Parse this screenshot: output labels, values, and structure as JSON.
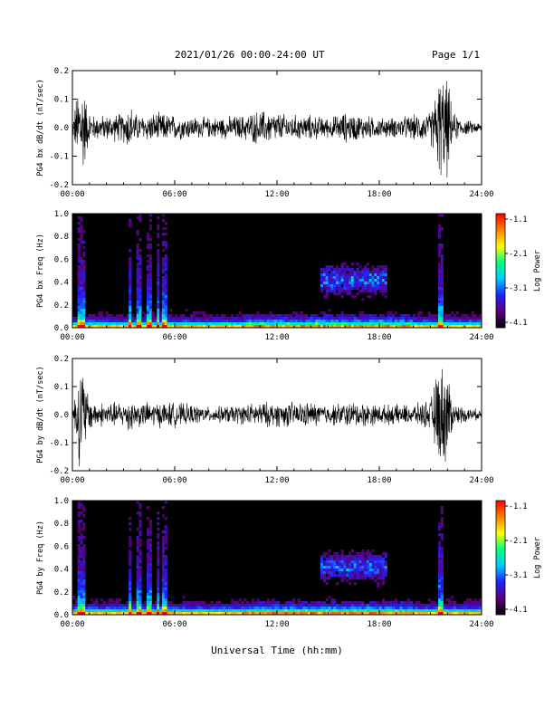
{
  "header": {
    "title": "2021/01/26  00:00-24:00 UT",
    "page": "Page 1/1"
  },
  "x_axis_label": "Universal Time (hh:mm)",
  "colorbar": {
    "label": "Log Power",
    "ticks": [
      "-1.1",
      "-2.1",
      "-3.1",
      "-4.1"
    ],
    "range": [
      -4.1,
      -1.1
    ],
    "colors": [
      "#000000",
      "#5a0078",
      "#2020ff",
      "#00c8ff",
      "#00ff80",
      "#ffff00",
      "#ff8000",
      "#ff0000"
    ]
  },
  "chart_data": [
    {
      "type": "line",
      "ylabel": "PG4 bx dB/dt (nT/sec)",
      "ylim": [
        -0.2,
        0.2
      ],
      "yticks": [
        "0.2",
        "0.1",
        "0.0",
        "-0.1",
        "-0.2"
      ],
      "xticks": [
        "00:00",
        "06:00",
        "12:00",
        "18:00",
        "24:00"
      ],
      "xlim_hours": [
        0,
        24
      ],
      "envelope": {
        "hours": [
          0,
          0.4,
          0.6,
          0.9,
          1.2,
          2,
          3,
          3.4,
          3.6,
          4,
          5,
          6,
          8,
          10,
          11,
          12,
          13,
          14,
          15,
          16,
          17,
          18,
          19,
          20,
          21,
          21.5,
          21.7,
          22,
          22.3,
          23,
          24
        ],
        "amplitude": [
          0.02,
          0.2,
          0.2,
          0.08,
          0.05,
          0.05,
          0.06,
          0.1,
          0.06,
          0.05,
          0.06,
          0.05,
          0.04,
          0.05,
          0.07,
          0.06,
          0.05,
          0.05,
          0.04,
          0.06,
          0.05,
          0.04,
          0.04,
          0.05,
          0.06,
          0.2,
          0.2,
          0.2,
          0.06,
          0.03,
          0.02
        ]
      },
      "color": "#000000"
    },
    {
      "type": "heatmap",
      "ylabel": "PG4 bx Freq (Hz)",
      "ylim": [
        0.0,
        1.0
      ],
      "yticks": [
        "1.0",
        "0.8",
        "0.6",
        "0.4",
        "0.2",
        "0.0"
      ],
      "xticks": [
        "00:00",
        "06:00",
        "12:00",
        "18:00",
        "24:00"
      ],
      "xlim_hours": [
        0,
        24
      ],
      "zlim": [
        -4.1,
        -1.1
      ],
      "enhanced_band": {
        "start_hour": 14.5,
        "end_hour": 18.5,
        "center_hz": 0.42,
        "width_hz": 0.12
      }
    },
    {
      "type": "line",
      "ylabel": "PG4 by dB/dt (nT/sec)",
      "ylim": [
        -0.2,
        0.2
      ],
      "yticks": [
        "0.2",
        "0.1",
        "0.0",
        "-0.1",
        "-0.2"
      ],
      "xticks": [
        "00:00",
        "06:00",
        "12:00",
        "18:00",
        "24:00"
      ],
      "xlim_hours": [
        0,
        24
      ],
      "envelope": {
        "hours": [
          0,
          0.4,
          0.6,
          0.9,
          1.2,
          2,
          3,
          3.4,
          3.6,
          4,
          5,
          6,
          8,
          10,
          11,
          12,
          13,
          14,
          15,
          16,
          17,
          18,
          19,
          20,
          21,
          21.5,
          21.7,
          22,
          22.3,
          23,
          24
        ],
        "amplitude": [
          0.02,
          0.2,
          0.2,
          0.09,
          0.05,
          0.05,
          0.05,
          0.08,
          0.05,
          0.05,
          0.05,
          0.05,
          0.03,
          0.04,
          0.05,
          0.05,
          0.05,
          0.05,
          0.04,
          0.05,
          0.05,
          0.04,
          0.04,
          0.04,
          0.06,
          0.2,
          0.2,
          0.2,
          0.05,
          0.03,
          0.02
        ]
      },
      "color": "#000000"
    },
    {
      "type": "heatmap",
      "ylabel": "PG4 by Freq (Hz)",
      "ylim": [
        0.0,
        1.0
      ],
      "yticks": [
        "1.0",
        "0.8",
        "0.6",
        "0.4",
        "0.2",
        "0.0"
      ],
      "xticks": [
        "00:00",
        "06:00",
        "12:00",
        "18:00",
        "24:00"
      ],
      "xlim_hours": [
        0,
        24
      ],
      "zlim": [
        -4.1,
        -1.1
      ],
      "enhanced_band": {
        "start_hour": 14.5,
        "end_hour": 18.5,
        "center_hz": 0.42,
        "width_hz": 0.12
      }
    }
  ]
}
